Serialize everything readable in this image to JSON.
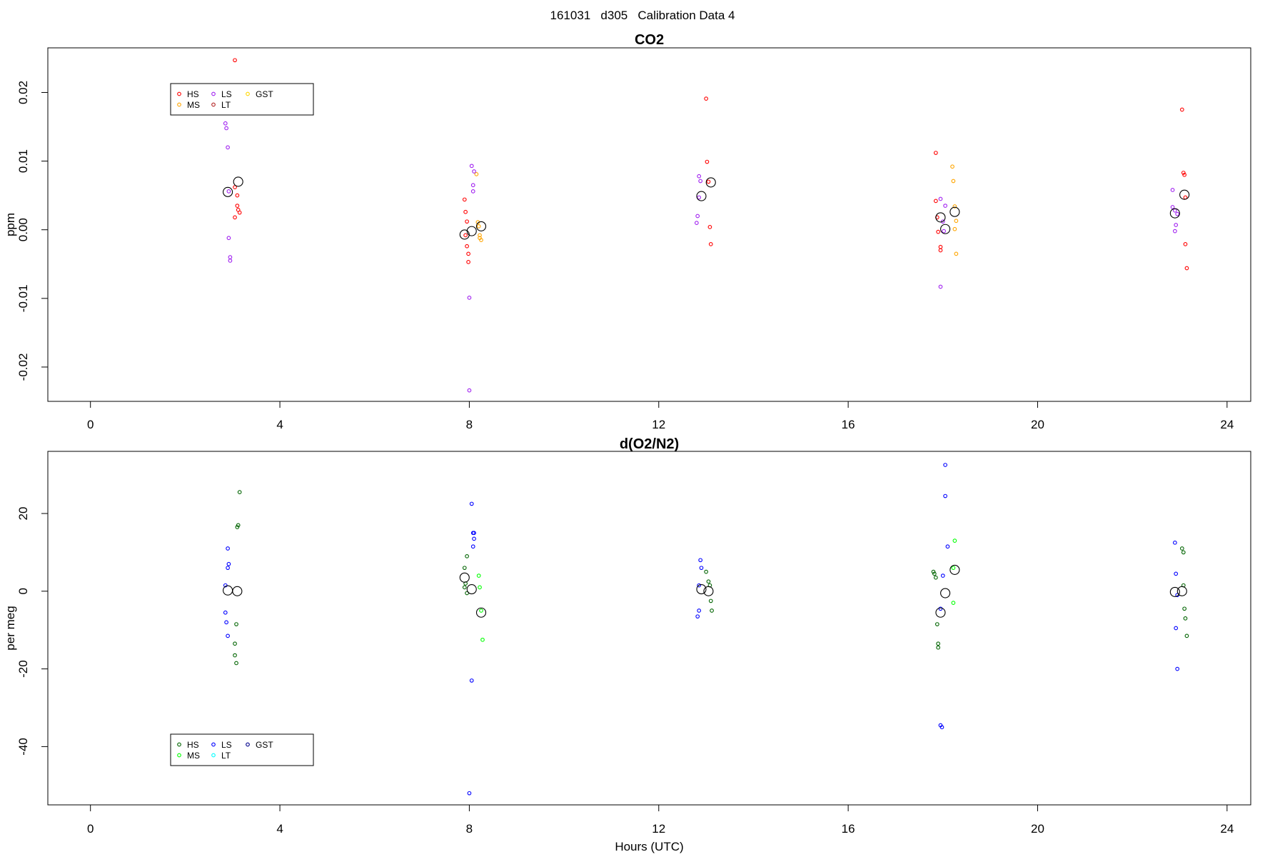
{
  "page_title": "161031   d305   Calibration Data 4",
  "chart_data": [
    {
      "type": "scatter",
      "title": "CO2",
      "xlabel": "",
      "ylabel": "ppm",
      "xlim": [
        -0.9,
        24.5
      ],
      "ylim": [
        -0.025,
        0.0265
      ],
      "x_ticks": [
        "0",
        "4",
        "8",
        "12",
        "16",
        "20",
        "24"
      ],
      "y_ticks": [
        "-0.02",
        "-0.01",
        "0.00",
        "0.01",
        "0.02"
      ],
      "legend": {
        "position": "top-left",
        "entries": [
          {
            "label": "HS",
            "color": "#ff0000"
          },
          {
            "label": "MS",
            "color": "#ffa500"
          },
          {
            "label": "LS",
            "color": "#a020f0"
          },
          {
            "label": "LT",
            "color": "#b22222"
          },
          {
            "label": "GST",
            "color": "#ffd700"
          }
        ]
      },
      "series": [
        {
          "name": "HS",
          "color": "#ff0000",
          "points": [
            [
              3.05,
              0.0247
            ],
            [
              3.1,
              0.0035
            ],
            [
              3.12,
              0.0029
            ],
            [
              3.15,
              0.0025
            ],
            [
              3.05,
              0.0018
            ],
            [
              3.1,
              0.005
            ],
            [
              3.05,
              0.0062
            ],
            [
              7.9,
              0.0044
            ],
            [
              7.92,
              0.0026
            ],
            [
              7.95,
              0.0012
            ],
            [
              7.92,
              -0.0008
            ],
            [
              7.95,
              -0.0024
            ],
            [
              7.98,
              -0.0035
            ],
            [
              7.98,
              -0.0047
            ],
            [
              13.0,
              0.0191
            ],
            [
              13.02,
              0.0099
            ],
            [
              13.05,
              0.007
            ],
            [
              13.08,
              0.0004
            ],
            [
              13.1,
              -0.0021
            ],
            [
              17.85,
              0.0112
            ],
            [
              17.85,
              0.0042
            ],
            [
              17.88,
              0.0018
            ],
            [
              17.9,
              -0.0003
            ],
            [
              17.95,
              -0.0025
            ],
            [
              17.95,
              -0.003
            ],
            [
              23.05,
              0.0175
            ],
            [
              23.08,
              0.0083
            ],
            [
              23.1,
              0.008
            ],
            [
              23.12,
              0.0047
            ],
            [
              23.12,
              -0.0021
            ],
            [
              23.15,
              -0.0056
            ]
          ]
        },
        {
          "name": "MS",
          "color": "#ffa500",
          "points": [
            [
              8.15,
              0.0081
            ],
            [
              8.18,
              0.0011
            ],
            [
              8.2,
              0.0005
            ],
            [
              8.22,
              -0.0008
            ],
            [
              8.22,
              -0.0012
            ],
            [
              8.25,
              -0.0015
            ],
            [
              18.2,
              0.0092
            ],
            [
              18.22,
              0.0071
            ],
            [
              18.25,
              0.0034
            ],
            [
              18.28,
              0.0013
            ],
            [
              18.25,
              0.0001
            ],
            [
              18.28,
              -0.0035
            ]
          ]
        },
        {
          "name": "LS",
          "color": "#a020f0",
          "points": [
            [
              2.85,
              0.0155
            ],
            [
              2.87,
              0.0148
            ],
            [
              2.9,
              0.012
            ],
            [
              2.92,
              0.0056
            ],
            [
              2.92,
              -0.0012
            ],
            [
              2.95,
              -0.004
            ],
            [
              2.95,
              -0.0045
            ],
            [
              8.05,
              0.0093
            ],
            [
              8.1,
              0.0085
            ],
            [
              8.08,
              0.0065
            ],
            [
              8.08,
              0.0056
            ],
            [
              8.0,
              -0.0099
            ],
            [
              8.0,
              -0.0234
            ],
            [
              12.85,
              0.0078
            ],
            [
              12.88,
              0.0071
            ],
            [
              12.85,
              0.0047
            ],
            [
              12.82,
              0.002
            ],
            [
              12.8,
              0.001
            ],
            [
              17.95,
              0.0045
            ],
            [
              18.05,
              0.0035
            ],
            [
              18.0,
              0.0012
            ],
            [
              18.02,
              -0.0002
            ],
            [
              17.95,
              -0.0083
            ],
            [
              22.85,
              0.0058
            ],
            [
              22.85,
              0.0033
            ],
            [
              22.9,
              0.0028
            ],
            [
              22.95,
              0.0023
            ],
            [
              22.92,
              0.0007
            ],
            [
              22.9,
              -0.0002
            ]
          ]
        },
        {
          "name": "LT",
          "color": "#b22222",
          "points": []
        },
        {
          "name": "GST",
          "color": "#ffd700",
          "points": []
        }
      ],
      "averages": [
        [
          2.9,
          0.0055
        ],
        [
          3.12,
          0.007
        ],
        [
          7.9,
          -0.0007
        ],
        [
          8.05,
          -0.0002
        ],
        [
          8.25,
          0.0005
        ],
        [
          12.9,
          0.0049
        ],
        [
          13.1,
          0.0069
        ],
        [
          17.95,
          0.0018
        ],
        [
          18.05,
          0.0001
        ],
        [
          18.25,
          0.0026
        ],
        [
          22.9,
          0.0024
        ],
        [
          23.1,
          0.0051
        ]
      ]
    },
    {
      "type": "scatter",
      "title": "d(O2/N2)",
      "xlabel": "Hours (UTC)",
      "ylabel": "per meg",
      "xlim": [
        -0.9,
        24.5
      ],
      "ylim": [
        -55,
        36
      ],
      "x_ticks": [
        "0",
        "4",
        "8",
        "12",
        "16",
        "20",
        "24"
      ],
      "y_ticks": [
        "-40",
        "-20",
        "0",
        "20"
      ],
      "legend": {
        "position": "bottom-left",
        "entries": [
          {
            "label": "HS",
            "color": "#006400"
          },
          {
            "label": "MS",
            "color": "#00ff00"
          },
          {
            "label": "LS",
            "color": "#0000ff"
          },
          {
            "label": "LT",
            "color": "#00ffff"
          },
          {
            "label": "GST",
            "color": "#00008b"
          }
        ]
      },
      "series": [
        {
          "name": "HS",
          "color": "#006400",
          "points": [
            [
              3.15,
              25.5
            ],
            [
              3.12,
              17.0
            ],
            [
              3.1,
              16.5
            ],
            [
              3.08,
              -8.5
            ],
            [
              3.05,
              -13.5
            ],
            [
              3.05,
              -16.5
            ],
            [
              3.08,
              -18.5
            ],
            [
              7.95,
              9.0
            ],
            [
              7.9,
              6.0
            ],
            [
              7.92,
              2.0
            ],
            [
              7.9,
              1.0
            ],
            [
              7.95,
              -0.5
            ],
            [
              13.0,
              5.0
            ],
            [
              13.05,
              2.5
            ],
            [
              13.08,
              1.5
            ],
            [
              13.1,
              -2.5
            ],
            [
              13.12,
              -5.0
            ],
            [
              17.8,
              5.0
            ],
            [
              17.82,
              4.5
            ],
            [
              17.85,
              3.5
            ],
            [
              17.88,
              -8.5
            ],
            [
              17.9,
              -13.5
            ],
            [
              17.9,
              -14.5
            ],
            [
              23.05,
              11.0
            ],
            [
              23.08,
              10.0
            ],
            [
              23.08,
              1.5
            ],
            [
              23.1,
              -4.5
            ],
            [
              23.12,
              -7.0
            ],
            [
              23.15,
              -11.5
            ]
          ]
        },
        {
          "name": "MS",
          "color": "#00ff00",
          "points": [
            [
              8.2,
              4.0
            ],
            [
              8.22,
              1.0
            ],
            [
              8.25,
              -5.0
            ],
            [
              8.28,
              -12.5
            ],
            [
              18.25,
              13.0
            ],
            [
              18.22,
              6.0
            ],
            [
              18.22,
              -3.0
            ]
          ]
        },
        {
          "name": "LS",
          "color": "#0000ff",
          "points": [
            [
              2.9,
              11.0
            ],
            [
              2.92,
              7.0
            ],
            [
              2.9,
              6.0
            ],
            [
              2.85,
              1.5
            ],
            [
              2.85,
              -5.5
            ],
            [
              2.87,
              -8.0
            ],
            [
              2.9,
              -11.5
            ],
            [
              8.05,
              22.5
            ],
            [
              8.08,
              15.0
            ],
            [
              8.1,
              15.0
            ],
            [
              8.1,
              13.5
            ],
            [
              8.08,
              11.5
            ],
            [
              8.05,
              -23.0
            ],
            [
              8.0,
              -52.0
            ],
            [
              12.88,
              8.0
            ],
            [
              12.9,
              6.0
            ],
            [
              12.85,
              1.5
            ],
            [
              12.85,
              -5.0
            ],
            [
              12.82,
              -6.5
            ],
            [
              18.05,
              32.5
            ],
            [
              18.05,
              24.5
            ],
            [
              18.1,
              11.5
            ],
            [
              18.0,
              4.0
            ],
            [
              17.95,
              -4.5
            ],
            [
              17.95,
              -34.5
            ],
            [
              17.98,
              -35.0
            ],
            [
              22.9,
              12.5
            ],
            [
              22.92,
              4.5
            ],
            [
              22.95,
              -1.0
            ],
            [
              22.92,
              -9.5
            ],
            [
              22.95,
              -20.0
            ]
          ]
        },
        {
          "name": "LT",
          "color": "#00ffff",
          "points": []
        },
        {
          "name": "GST",
          "color": "#00008b",
          "points": []
        }
      ],
      "averages": [
        [
          2.9,
          0.2
        ],
        [
          3.1,
          0.0
        ],
        [
          7.9,
          3.5
        ],
        [
          8.05,
          0.5
        ],
        [
          8.25,
          -5.5
        ],
        [
          12.9,
          0.5
        ],
        [
          13.05,
          0.0
        ],
        [
          17.95,
          -5.5
        ],
        [
          18.05,
          -0.5
        ],
        [
          18.25,
          5.5
        ],
        [
          22.9,
          -0.2
        ],
        [
          23.05,
          0.0
        ]
      ]
    }
  ]
}
